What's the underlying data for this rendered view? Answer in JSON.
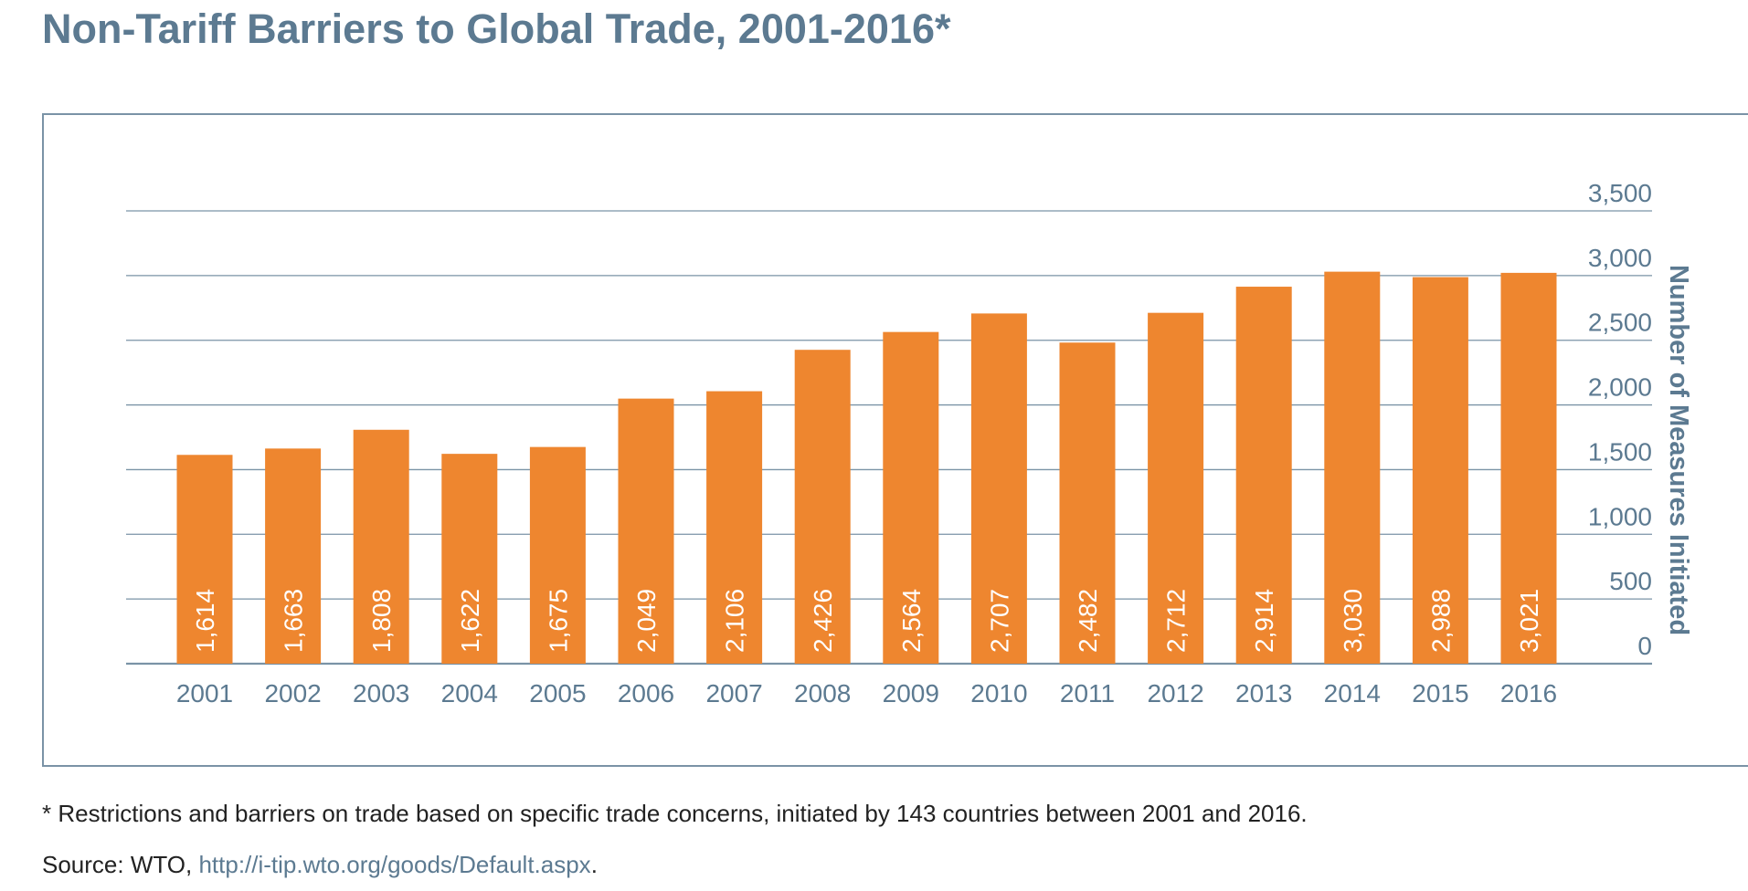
{
  "title": "Non-Tariff Barriers to Global Trade, 2001-2016*",
  "footnote": "* Restrictions and barriers on trade based on specific trade concerns, initiated by 143 countries between 2001 and 2016.",
  "source": {
    "prefix": "Source: WTO, ",
    "link_text": "http://i-tip.wto.org/goods/Default.aspx",
    "suffix": "."
  },
  "colors": {
    "bar": "#ee862f",
    "text": "#5c7a91",
    "grid": "#7a93a6"
  },
  "chart_data": {
    "type": "bar",
    "categories": [
      "2001",
      "2002",
      "2003",
      "2004",
      "2005",
      "2006",
      "2007",
      "2008",
      "2009",
      "2010",
      "2011",
      "2012",
      "2013",
      "2014",
      "2015",
      "2016"
    ],
    "values": [
      1614,
      1663,
      1808,
      1622,
      1675,
      2049,
      2106,
      2426,
      2564,
      2707,
      2482,
      2712,
      2914,
      3030,
      2988,
      3021
    ],
    "value_labels": [
      "1,614",
      "1,663",
      "1,808",
      "1,622",
      "1,675",
      "2,049",
      "2,106",
      "2,426",
      "2,564",
      "2,707",
      "2,482",
      "2,712",
      "2,914",
      "3,030",
      "2,988",
      "3,021"
    ],
    "ylabel": "Number of Measures Initiated",
    "y_ticks": [
      0,
      500,
      1000,
      1500,
      2000,
      2500,
      3000,
      3500
    ],
    "y_tick_labels": [
      "0",
      "500",
      "1,000",
      "1,500",
      "2,000",
      "2,500",
      "3,000",
      "3,500"
    ],
    "ylim": [
      0,
      3500
    ],
    "y_axis_side": "right",
    "grid": true,
    "legend": "none"
  }
}
